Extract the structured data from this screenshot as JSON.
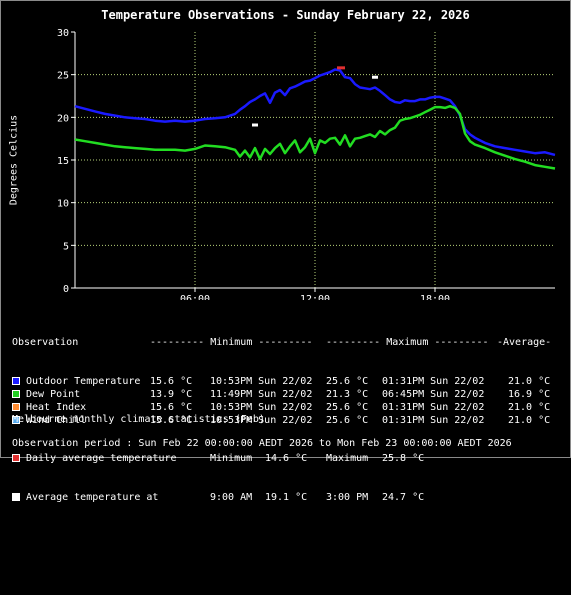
{
  "title": "Temperature Observations - Sunday February 22, 2026",
  "ylabel": "Degrees Celcius",
  "chart_data": {
    "type": "line",
    "title": "Temperature Observations - Sunday February 22, 2026",
    "xlabel": "",
    "ylabel": "Degrees Celcius",
    "xlim": [
      0,
      24
    ],
    "ylim": [
      0,
      30
    ],
    "y_ticks": [
      0,
      5,
      10,
      15,
      20,
      25,
      30
    ],
    "x_ticks": [
      6,
      12,
      18
    ],
    "x_tick_labels": [
      "06:00",
      "12:00",
      "18:00"
    ],
    "grid": true,
    "series": [
      {
        "name": "Outdoor Temperature",
        "color": "#1a1aff",
        "x": [
          0,
          0.5,
          1,
          1.5,
          2,
          2.5,
          3,
          3.5,
          4,
          4.5,
          5,
          5.5,
          6,
          6.5,
          7,
          7.5,
          8,
          8.25,
          8.5,
          8.75,
          9,
          9.25,
          9.5,
          9.75,
          10,
          10.25,
          10.5,
          10.75,
          11,
          11.25,
          11.5,
          11.75,
          12,
          12.25,
          12.5,
          12.75,
          13,
          13.25,
          13.5,
          13.75,
          14,
          14.25,
          14.5,
          14.75,
          15,
          15.25,
          15.5,
          15.75,
          16,
          16.25,
          16.5,
          16.75,
          17,
          17.25,
          17.5,
          17.75,
          18,
          18.25,
          18.5,
          18.75,
          19,
          19.25,
          19.5,
          19.75,
          20,
          20.25,
          20.5,
          21,
          21.5,
          22,
          22.5,
          23,
          23.5,
          24
        ],
        "y": [
          21.3,
          21.0,
          20.7,
          20.4,
          20.2,
          20.0,
          19.9,
          19.8,
          19.6,
          19.5,
          19.6,
          19.5,
          19.6,
          19.8,
          19.9,
          20.0,
          20.4,
          20.9,
          21.3,
          21.8,
          22.1,
          22.5,
          22.8,
          21.7,
          22.9,
          23.2,
          22.6,
          23.4,
          23.6,
          23.9,
          24.2,
          24.3,
          24.6,
          24.9,
          25.1,
          25.3,
          25.6,
          25.5,
          24.7,
          24.6,
          23.9,
          23.5,
          23.4,
          23.3,
          23.5,
          23.1,
          22.6,
          22.1,
          21.8,
          21.7,
          22.0,
          21.9,
          21.9,
          22.1,
          22.1,
          22.3,
          22.4,
          22.4,
          22.2,
          22.0,
          21.3,
          20.2,
          18.6,
          18.0,
          17.6,
          17.3,
          17.0,
          16.6,
          16.4,
          16.2,
          16.0,
          15.8,
          15.9,
          15.6
        ]
      },
      {
        "name": "Dew Point",
        "color": "#22dd22",
        "x": [
          0,
          0.5,
          1,
          1.5,
          2,
          2.5,
          3,
          3.5,
          4,
          4.5,
          5,
          5.5,
          6,
          6.5,
          7,
          7.5,
          8,
          8.25,
          8.5,
          8.75,
          9,
          9.25,
          9.5,
          9.75,
          10,
          10.25,
          10.5,
          10.75,
          11,
          11.25,
          11.5,
          11.75,
          12,
          12.25,
          12.5,
          12.75,
          13,
          13.25,
          13.5,
          13.75,
          14,
          14.25,
          14.5,
          14.75,
          15,
          15.25,
          15.5,
          15.75,
          16,
          16.25,
          16.5,
          16.75,
          17,
          17.25,
          17.5,
          17.75,
          18,
          18.25,
          18.5,
          18.75,
          19,
          19.25,
          19.5,
          19.75,
          20,
          20.25,
          20.5,
          21,
          21.5,
          22,
          22.5,
          23,
          23.5,
          24
        ],
        "y": [
          17.4,
          17.2,
          17.0,
          16.8,
          16.6,
          16.5,
          16.4,
          16.3,
          16.2,
          16.2,
          16.2,
          16.1,
          16.3,
          16.7,
          16.6,
          16.5,
          16.2,
          15.4,
          16.1,
          15.3,
          16.4,
          15.1,
          16.3,
          15.7,
          16.4,
          16.9,
          15.8,
          16.6,
          17.3,
          15.9,
          16.5,
          17.5,
          15.8,
          17.3,
          17.0,
          17.5,
          17.6,
          16.8,
          17.9,
          16.6,
          17.5,
          17.6,
          17.8,
          18.0,
          17.7,
          18.4,
          18.0,
          18.5,
          18.8,
          19.6,
          19.8,
          19.9,
          20.1,
          20.3,
          20.6,
          20.9,
          21.2,
          21.2,
          21.1,
          21.3,
          21.1,
          20.4,
          18.1,
          17.2,
          16.8,
          16.6,
          16.4,
          15.9,
          15.5,
          15.1,
          14.8,
          14.4,
          14.2,
          14.0
        ]
      }
    ],
    "markers": [
      {
        "name": "Daily average temperature",
        "color": "#e03030",
        "x_range": [
          13.1,
          13.5
        ],
        "y": 25.8
      },
      {
        "name": "Average temperature at 9:00 AM",
        "color": "#ffffff",
        "x": 9,
        "y": 19.1
      },
      {
        "name": "Average temperature at 3:00 PM",
        "color": "#ffffff",
        "x": 15,
        "y": 24.7
      }
    ]
  },
  "table": {
    "header": {
      "observation": "Observation",
      "minimum": "--------- Minimum ---------",
      "maximum": "--------- Maximum ---------",
      "average": "-Average-"
    },
    "rows": [
      {
        "swatch": "#1a1aff",
        "name": "Outdoor Temperature",
        "min_val": "15.6 °C",
        "min_time": "10:53PM Sun 22/02",
        "max_val": "25.6 °C",
        "max_time": "01:31PM Sun 22/02",
        "avg": "21.0 °C"
      },
      {
        "swatch": "#22cc22",
        "name": "Dew Point",
        "min_val": "13.9 °C",
        "min_time": "11:49PM Sun 22/02",
        "max_val": "21.3 °C",
        "max_time": "06:45PM Sun 22/02",
        "avg": "16.9 °C"
      },
      {
        "swatch": "#ff8c33",
        "name": "Heat Index",
        "min_val": "15.6 °C",
        "min_time": "10:53PM Sun 22/02",
        "max_val": "25.6 °C",
        "max_time": "01:31PM Sun 22/02",
        "avg": "21.0 °C"
      },
      {
        "swatch": "#55aaee",
        "name": "Wind Chill",
        "min_val": "15.6 °C",
        "min_time": "10:53PM Sun 22/02",
        "max_val": "25.6 °C",
        "max_time": "01:31PM Sun 22/02",
        "avg": "21.0 °C"
      }
    ]
  },
  "climate": {
    "heading": "Melbourne monthly climate statistics (Feb)",
    "daily": {
      "swatch": "#e03030",
      "label": "Daily average temperature",
      "min_label": "Minimum",
      "min_val": "14.6 °C",
      "max_label": "Maximum",
      "max_val": "25.8 °C"
    },
    "at": {
      "swatch": "#ffffff",
      "label": "Average temperature at",
      "t1": "9:00 AM",
      "v1": "19.1 °C",
      "t2": "3:00 PM",
      "v2": "24.7 °C"
    }
  },
  "footer": "Observation period : Sun Feb 22 00:00:00 AEDT 2026 to Mon Feb 23 00:00:00 AEDT 2026"
}
